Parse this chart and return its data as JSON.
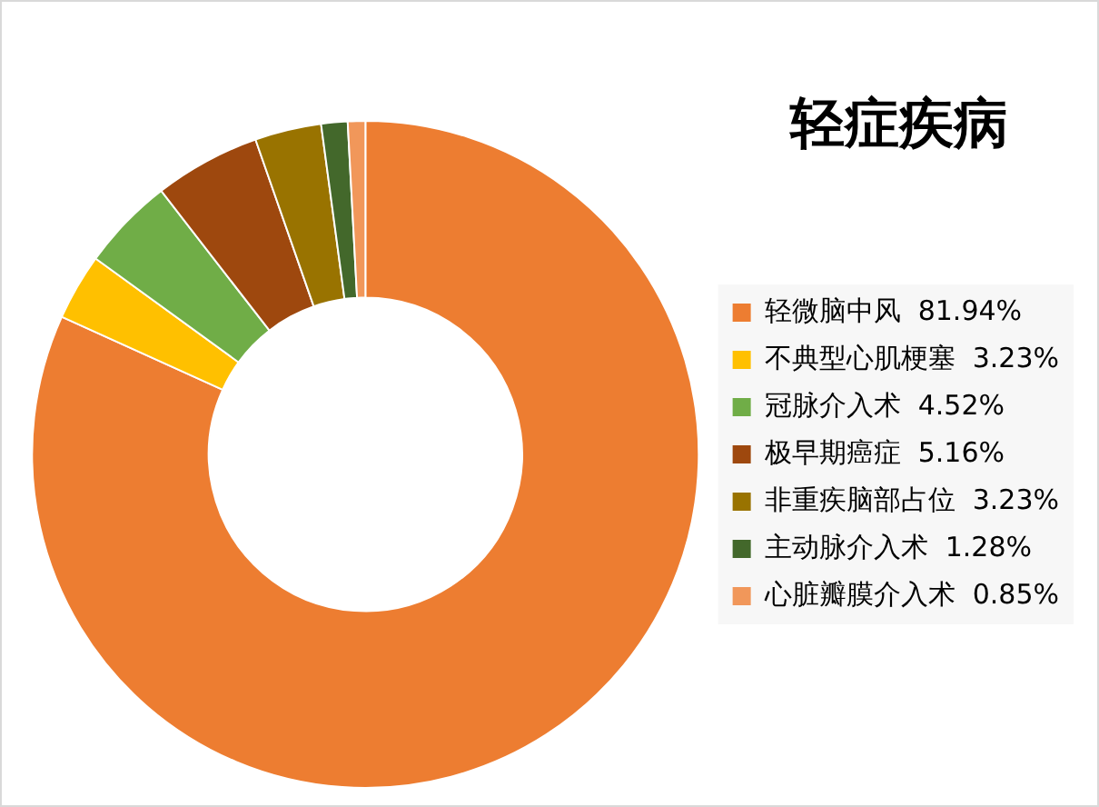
{
  "chart_data": {
    "type": "donut",
    "title": "轻症疾病",
    "categories": [
      "轻微脑中风",
      "不典型心肌梗塞",
      "冠脉介入术",
      "极早期癌症",
      "非重疾脑部占位",
      "主动脉介入术",
      "心脏瓣膜介入术"
    ],
    "values": [
      81.94,
      3.23,
      4.52,
      5.16,
      3.23,
      1.28,
      0.85
    ],
    "value_labels": [
      "81.94%",
      "3.23%",
      "4.52%",
      "5.16%",
      "3.23%",
      "1.28%",
      "0.85%"
    ],
    "colors": [
      "#ed7d31",
      "#ffc000",
      "#70ad47",
      "#9e480e",
      "#997300",
      "#43682b",
      "#f1975a"
    ],
    "legend": "right"
  }
}
